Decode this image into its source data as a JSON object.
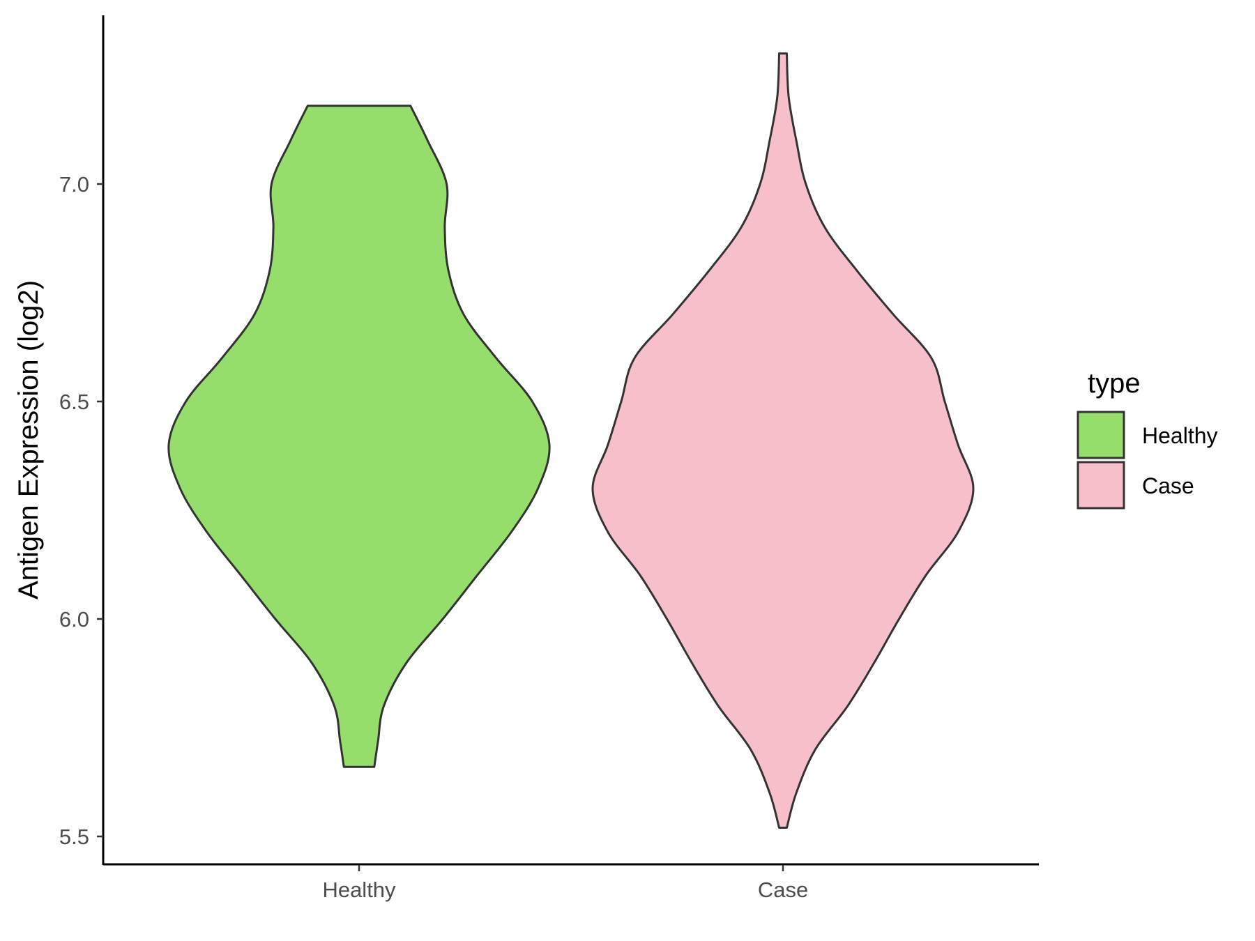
{
  "chart_data": {
    "type": "violin",
    "ylabel": "Antigen Expression (log2)",
    "xlabel": "",
    "ylim": [
      5.435,
      7.41
    ],
    "yticks": [
      5.5,
      6.0,
      6.5,
      7.0
    ],
    "ytick_labels": [
      "5.5",
      "6.0",
      "6.5",
      "7.0"
    ],
    "categories": [
      "Healthy",
      "Case"
    ],
    "legend": {
      "title": "type",
      "placement": "right"
    },
    "grid": false,
    "series": [
      {
        "name": "Healthy",
        "color": "#95DE6B",
        "min": 5.66,
        "max": 7.18,
        "density_profile": [
          [
            5.66,
            0.08
          ],
          [
            5.72,
            0.1
          ],
          [
            5.8,
            0.13
          ],
          [
            5.9,
            0.25
          ],
          [
            6.0,
            0.44
          ],
          [
            6.1,
            0.62
          ],
          [
            6.2,
            0.8
          ],
          [
            6.3,
            0.94
          ],
          [
            6.4,
            1.0
          ],
          [
            6.5,
            0.91
          ],
          [
            6.6,
            0.72
          ],
          [
            6.7,
            0.55
          ],
          [
            6.8,
            0.47
          ],
          [
            6.9,
            0.45
          ],
          [
            7.0,
            0.46
          ],
          [
            7.1,
            0.36
          ],
          [
            7.18,
            0.27
          ]
        ]
      },
      {
        "name": "Case",
        "color": "#F7BFCA",
        "min": 5.52,
        "max": 7.3,
        "density_profile": [
          [
            5.52,
            0.02
          ],
          [
            5.6,
            0.07
          ],
          [
            5.7,
            0.17
          ],
          [
            5.8,
            0.34
          ],
          [
            5.9,
            0.48
          ],
          [
            6.0,
            0.61
          ],
          [
            6.1,
            0.75
          ],
          [
            6.2,
            0.92
          ],
          [
            6.3,
            1.0
          ],
          [
            6.4,
            0.92
          ],
          [
            6.5,
            0.85
          ],
          [
            6.6,
            0.78
          ],
          [
            6.7,
            0.58
          ],
          [
            6.8,
            0.39
          ],
          [
            6.9,
            0.22
          ],
          [
            7.0,
            0.12
          ],
          [
            7.1,
            0.07
          ],
          [
            7.2,
            0.03
          ],
          [
            7.3,
            0.02
          ]
        ]
      }
    ]
  }
}
